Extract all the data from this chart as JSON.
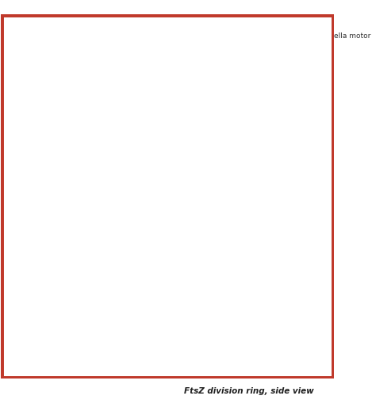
{
  "border_color": "#c0392b",
  "bg": "#ffffff",
  "cell": {
    "wall_color": "#6e6b2a",
    "fill_color": "#f0a070",
    "red_membrane": "#c0392b",
    "ftsz_color": "#27ae60",
    "flagella_color": "#1ab5c5",
    "chemo_color": "#5b2d82"
  },
  "panel_colors": {
    "periplasm_bg": "#e8f5e0",
    "cytoplasm_bg": "#fde8c0",
    "gray_membrane": "#b0b8c0",
    "white_bg": "#f8f8f0",
    "tan_bg": "#f5deb3",
    "flagella_bg": "#f5deb3",
    "ftsz_bg": "#f5deb3",
    "cell_wall_gray": "#c8cdd5",
    "peptido_dots": "#8fbc8f",
    "lring_color": "#c8a030",
    "pring_color": "#b09050",
    "sring_color": "#a08040",
    "cring_color": "#8090b8",
    "filament_blue": "#60a8d8",
    "red_mring": "#d03020",
    "motb_gray": "#909090",
    "zipa_red": "#d8302a",
    "ftsa_purple": "#8040b0",
    "ftsn_gray": "#909898",
    "ftsz_green": "#3aaa50",
    "chea_blue": "#6090d0",
    "chew_purple": "#a060c0",
    "receptor_orange": "#d86030",
    "receptor_red": "#c03020",
    "helix_green": "#50a860"
  }
}
